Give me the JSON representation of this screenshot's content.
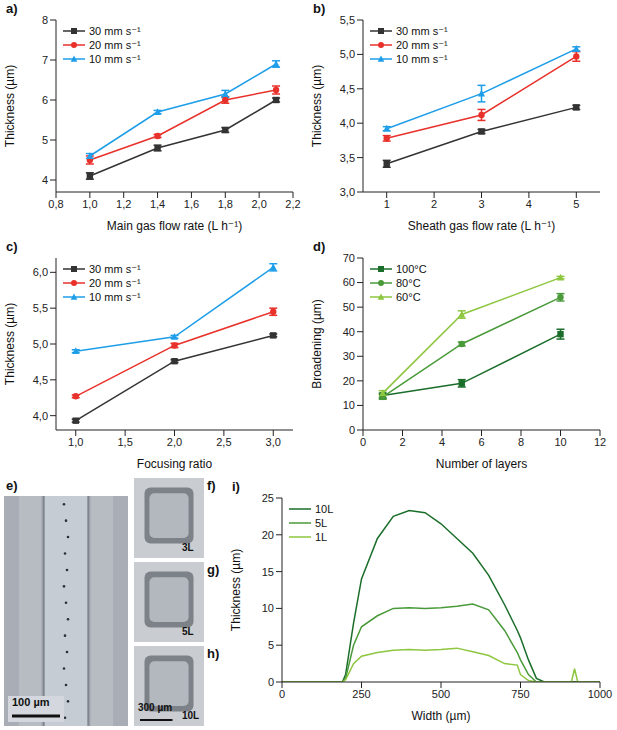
{
  "chart_data": [
    {
      "type": "line",
      "title": "a)",
      "x_label": "Main gas flow rate (L h⁻¹)",
      "y_label": "Thickness (µm)",
      "x": [
        1.0,
        1.4,
        1.8,
        2.1
      ],
      "xlim": [
        0.8,
        2.2
      ],
      "xticks": [
        {
          "value": 0.8,
          "label": "0,8"
        },
        {
          "value": 1.0,
          "label": "1,0"
        },
        {
          "value": 1.2,
          "label": "1,2"
        },
        {
          "value": 1.4,
          "label": "1,4"
        },
        {
          "value": 1.6,
          "label": "1,6"
        },
        {
          "value": 1.8,
          "label": "1,8"
        },
        {
          "value": 2.0,
          "label": "2,0"
        },
        {
          "value": 2.2,
          "label": "2,2"
        }
      ],
      "ylim": [
        3.7,
        8
      ],
      "yticks": [
        4,
        5,
        6,
        7,
        8
      ],
      "legend": "top-left",
      "series": [
        {
          "name": "30 mm s⁻¹",
          "color": "#333333",
          "marker": "square",
          "values": [
            4.1,
            4.8,
            5.25,
            6.0
          ],
          "errors": [
            0.08,
            0.07,
            0.06,
            0.05
          ]
        },
        {
          "name": "20 mm s⁻¹",
          "color": "#e8312a",
          "marker": "circle",
          "values": [
            4.5,
            5.1,
            6.0,
            6.25
          ],
          "errors": [
            0.1,
            0.04,
            0.08,
            0.1
          ]
        },
        {
          "name": "10 mm s⁻¹",
          "color": "#1e9ee8",
          "marker": "triangle",
          "values": [
            4.6,
            5.7,
            6.15,
            6.9
          ],
          "errors": [
            0.06,
            0.04,
            0.09,
            0.08
          ]
        }
      ]
    },
    {
      "type": "line",
      "title": "b)",
      "x_label": "Sheath gas flow rate (L h⁻¹)",
      "y_label": "Thickness (µm)",
      "x": [
        1,
        3,
        5
      ],
      "xlim": [
        0.5,
        5.5
      ],
      "xticks": [
        1,
        2,
        3,
        4,
        5
      ],
      "ylim": [
        3.0,
        5.5
      ],
      "yticks": [
        {
          "value": 3.0,
          "label": "3,0"
        },
        {
          "value": 3.5,
          "label": "3,5"
        },
        {
          "value": 4.0,
          "label": "4,0"
        },
        {
          "value": 4.5,
          "label": "4,5"
        },
        {
          "value": 5.0,
          "label": "5,0"
        },
        {
          "value": 5.5,
          "label": "5,5"
        }
      ],
      "legend": "top-left",
      "series": [
        {
          "name": "30 mm s⁻¹",
          "color": "#333333",
          "marker": "square",
          "values": [
            3.41,
            3.88,
            4.23
          ],
          "errors": [
            0.05,
            0.03,
            0.03
          ]
        },
        {
          "name": "20 mm s⁻¹",
          "color": "#e8312a",
          "marker": "circle",
          "values": [
            3.78,
            4.12,
            4.97
          ],
          "errors": [
            0.04,
            0.08,
            0.07
          ]
        },
        {
          "name": "10 mm s⁻¹",
          "color": "#1e9ee8",
          "marker": "triangle",
          "values": [
            3.92,
            4.43,
            5.08
          ],
          "errors": [
            0.03,
            0.12,
            0.03
          ]
        }
      ]
    },
    {
      "type": "line",
      "title": "c)",
      "x_label": "Focusing ratio",
      "y_label": "Thickness (µm)",
      "x": [
        1,
        2,
        3
      ],
      "xlim": [
        0.8,
        3.2
      ],
      "xticks": [
        {
          "value": 1.0,
          "label": "1,0"
        },
        {
          "value": 1.5,
          "label": "1,5"
        },
        {
          "value": 2.0,
          "label": "2,0"
        },
        {
          "value": 2.5,
          "label": "2,5"
        },
        {
          "value": 3.0,
          "label": "3,0"
        }
      ],
      "ylim": [
        3.8,
        6.2
      ],
      "yticks": [
        {
          "value": 4.0,
          "label": "4,0"
        },
        {
          "value": 4.5,
          "label": "4,5"
        },
        {
          "value": 5.0,
          "label": "5,0"
        },
        {
          "value": 5.5,
          "label": "5,5"
        },
        {
          "value": 6.0,
          "label": "6,0"
        }
      ],
      "legend": "top-left",
      "series": [
        {
          "name": "30 mm s⁻¹",
          "color": "#333333",
          "marker": "square",
          "values": [
            3.93,
            4.76,
            5.12
          ],
          "errors": [
            0.02,
            0.02,
            0.02
          ]
        },
        {
          "name": "20 mm s⁻¹",
          "color": "#e8312a",
          "marker": "circle",
          "values": [
            4.27,
            4.98,
            5.45
          ],
          "errors": [
            0.02,
            0.03,
            0.05
          ]
        },
        {
          "name": "10 mm s⁻¹",
          "color": "#1e9ee8",
          "marker": "triangle",
          "values": [
            4.9,
            5.1,
            6.07
          ],
          "errors": [
            0.02,
            0.02,
            0.05
          ]
        }
      ]
    },
    {
      "type": "line",
      "title": "d)",
      "x_label": "Number of layers",
      "y_label": "Broadening (µm)",
      "x": [
        1,
        5,
        10
      ],
      "xlim": [
        0,
        12
      ],
      "xticks": [
        0,
        2,
        4,
        6,
        8,
        10,
        12
      ],
      "ylim": [
        0,
        70
      ],
      "yticks": [
        0,
        10,
        20,
        30,
        40,
        50,
        60,
        70
      ],
      "legend": "top-left",
      "series": [
        {
          "name": "100°C",
          "color": "#1b6e2a",
          "marker": "square",
          "values": [
            14,
            19,
            39
          ],
          "errors": [
            1,
            1.5,
            2
          ]
        },
        {
          "name": "80°C",
          "color": "#4a9a3a",
          "marker": "circle",
          "values": [
            13.5,
            35,
            54
          ],
          "errors": [
            1,
            0.8,
            1.5
          ]
        },
        {
          "name": "60°C",
          "color": "#8dc63f",
          "marker": "triangle",
          "values": [
            15,
            47,
            62
          ],
          "errors": [
            1,
            1.5,
            0.5
          ]
        }
      ]
    },
    {
      "type": "line",
      "title": "i)",
      "x_label": "Width (µm)",
      "y_label": "Thickness (µm)",
      "x": [
        0,
        100,
        190,
        200,
        225,
        250,
        300,
        350,
        400,
        450,
        500,
        550,
        600,
        650,
        700,
        740,
        750,
        775,
        800,
        825,
        900,
        910,
        920,
        930,
        1000
      ],
      "xlim": [
        0,
        1000
      ],
      "xticks": [
        0,
        250,
        500,
        750,
        1000
      ],
      "ylim": [
        0,
        25
      ],
      "yticks": [
        0,
        5,
        10,
        15,
        20,
        25
      ],
      "legend": "top-left",
      "series": [
        {
          "name": "10L",
          "color": "#1b6e2a",
          "values": [
            0,
            0,
            0,
            1,
            8,
            14,
            19.5,
            22.5,
            23.3,
            23,
            21.5,
            19.5,
            17.5,
            14.5,
            10.5,
            7,
            6,
            3,
            0.5,
            0,
            0,
            0,
            0,
            0,
            0
          ]
        },
        {
          "name": "5L",
          "color": "#4a9a3a",
          "values": [
            0,
            0,
            0,
            0.5,
            5,
            7.5,
            9,
            10,
            10.1,
            10,
            10.1,
            10.3,
            10.6,
            9.8,
            7,
            4,
            3,
            1,
            0,
            0,
            0,
            0,
            0,
            0,
            0
          ]
        },
        {
          "name": "1L",
          "color": "#8dc63f",
          "values": [
            0,
            0,
            0,
            0.3,
            2.5,
            3.5,
            4,
            4.3,
            4.4,
            4.3,
            4.4,
            4.6,
            4.1,
            3.6,
            2.5,
            2.3,
            1,
            0.2,
            0,
            0,
            0,
            0,
            1.8,
            0,
            0
          ]
        }
      ]
    }
  ],
  "images": [
    {
      "title": "e)",
      "scale_bar": "100 µm"
    },
    {
      "title": "f)",
      "label": "3L"
    },
    {
      "title": "g)",
      "label": "5L"
    },
    {
      "title": "h)",
      "label": "10L",
      "scale_bar": "300 µm"
    }
  ]
}
